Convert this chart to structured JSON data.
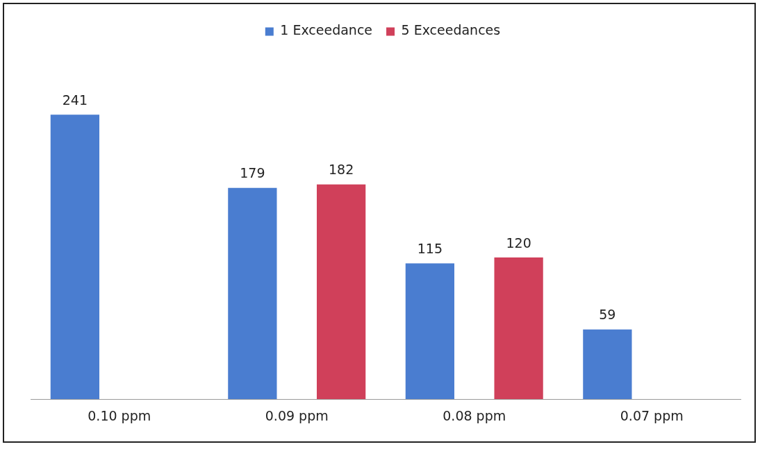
{
  "chart_data": {
    "type": "bar",
    "categories": [
      "0.10 ppm",
      "0.09 ppm",
      "0.08 ppm",
      "0.07 ppm"
    ],
    "series": [
      {
        "name": "1 Exceedance",
        "color": "#4a7dd0",
        "values": [
          241,
          179,
          115,
          59
        ]
      },
      {
        "name": "5 Exceedances",
        "color": "#d0405a",
        "values": [
          null,
          182,
          120,
          null
        ]
      }
    ],
    "data_labels": true,
    "legend": "top",
    "grid": false,
    "tick_labels": "x"
  }
}
